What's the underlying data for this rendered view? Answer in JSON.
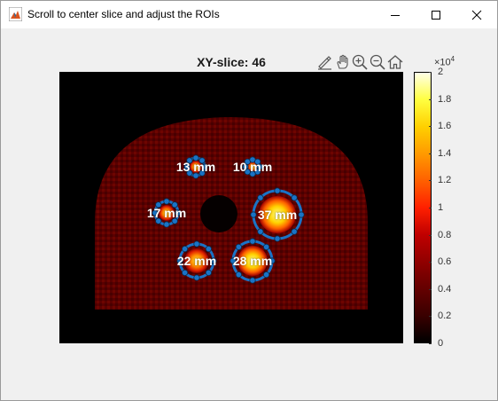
{
  "window": {
    "title": "Scroll to center slice and adjust the ROIs",
    "minimize_icon": "minimize-icon",
    "maximize_icon": "maximize-icon",
    "close_icon": "close-icon",
    "app_icon": "matlab-icon"
  },
  "figure": {
    "title": "XY-slice: 46",
    "toolbar": [
      {
        "icon": "brush-edit-icon"
      },
      {
        "icon": "pan-hand-icon"
      },
      {
        "icon": "zoom-in-icon"
      },
      {
        "icon": "zoom-out-icon"
      },
      {
        "icon": "home-icon"
      }
    ]
  },
  "colorbar": {
    "exponent_base": "×10",
    "exponent_power": "4",
    "ticks": [
      "0",
      "0.2",
      "0.4",
      "0.6",
      "0.8",
      "1",
      "1.2",
      "1.4",
      "1.6",
      "1.8",
      "2"
    ],
    "colormap": "hot"
  },
  "rois": [
    {
      "label": "13 mm",
      "ring_color": "#1a73c6"
    },
    {
      "label": "10 mm",
      "ring_color": "#1a73c6"
    },
    {
      "label": "17 mm",
      "ring_color": "#1a73c6"
    },
    {
      "label": "37 mm",
      "ring_color": "#1a73c6"
    },
    {
      "label": "22 mm",
      "ring_color": "#1a73c6"
    },
    {
      "label": "28 mm",
      "ring_color": "#1a73c6"
    }
  ],
  "colors": {
    "roi_ring": "#1a73c6",
    "background": "#f0f0f0",
    "image_background": "#000000"
  }
}
